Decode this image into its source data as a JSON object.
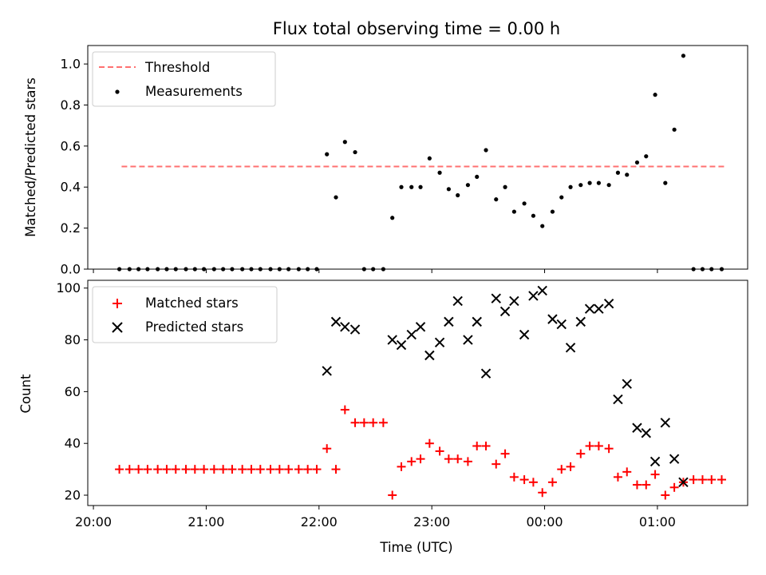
{
  "chart_data": [
    {
      "type": "scatter",
      "title": "Flux total observing time = 0.00 h",
      "ylabel": "Matched/Predicted stars",
      "ylim": [
        0,
        1.09
      ],
      "yticks": [
        "0.0",
        "0.2",
        "0.4",
        "0.6",
        "0.8",
        "1.0"
      ],
      "legend": "top-left",
      "threshold": {
        "name": "Threshold",
        "value": 0.5,
        "x_range": [
          20.25,
          25.6
        ],
        "color": "#ff7070"
      },
      "series": [
        {
          "name": "Measurements",
          "color": "#000000",
          "x": [
            20.23,
            20.32,
            20.4,
            20.48,
            20.57,
            20.65,
            20.73,
            20.82,
            20.9,
            20.98,
            21.07,
            21.15,
            21.23,
            21.32,
            21.4,
            21.48,
            21.57,
            21.65,
            21.73,
            21.82,
            21.9,
            21.98,
            22.07,
            22.15,
            22.23,
            22.32,
            22.4,
            22.48,
            22.57,
            22.65,
            22.73,
            22.82,
            22.9,
            22.98,
            23.07,
            23.15,
            23.23,
            23.32,
            23.4,
            23.48,
            23.57,
            23.65,
            23.73,
            23.82,
            23.9,
            23.98,
            24.07,
            24.15,
            24.23,
            24.32,
            24.4,
            24.48,
            24.57,
            24.65,
            24.73,
            24.82,
            24.9,
            24.98,
            25.07,
            25.15,
            25.23,
            25.32,
            25.4,
            25.48,
            25.57
          ],
          "y": [
            0,
            0,
            0,
            0,
            0,
            0,
            0,
            0,
            0,
            0,
            0,
            0,
            0,
            0,
            0,
            0,
            0,
            0,
            0,
            0,
            0,
            0,
            0.56,
            0.35,
            0.62,
            0.57,
            0,
            0,
            0,
            0.25,
            0.4,
            0.4,
            0.4,
            0.54,
            0.47,
            0.39,
            0.36,
            0.41,
            0.45,
            0.58,
            0.34,
            0.4,
            0.28,
            0.32,
            0.26,
            0.21,
            0.28,
            0.35,
            0.4,
            0.41,
            0.42,
            0.42,
            0.41,
            0.47,
            0.46,
            0.52,
            0.55,
            0.85,
            0.42,
            0.68,
            1.04,
            0,
            0,
            0,
            0
          ]
        }
      ]
    },
    {
      "type": "scatter",
      "xlabel": "Time (UTC)",
      "ylabel": "Count",
      "ylim": [
        16,
        103
      ],
      "yticks": [
        "20",
        "40",
        "60",
        "80",
        "100"
      ],
      "xlim": [
        19.95,
        25.8
      ],
      "xticks": [
        "20:00",
        "21:00",
        "22:00",
        "23:00",
        "00:00",
        "01:00"
      ],
      "legend": "top-left",
      "series": [
        {
          "name": "Matched stars",
          "color": "#ff0000",
          "marker": "plus",
          "x": [
            20.23,
            20.32,
            20.4,
            20.48,
            20.57,
            20.65,
            20.73,
            20.82,
            20.9,
            20.98,
            21.07,
            21.15,
            21.23,
            21.32,
            21.4,
            21.48,
            21.57,
            21.65,
            21.73,
            21.82,
            21.9,
            21.98,
            22.07,
            22.15,
            22.23,
            22.32,
            22.4,
            22.48,
            22.57,
            22.65,
            22.73,
            22.82,
            22.9,
            22.98,
            23.07,
            23.15,
            23.23,
            23.32,
            23.4,
            23.48,
            23.57,
            23.65,
            23.73,
            23.82,
            23.9,
            23.98,
            24.07,
            24.15,
            24.23,
            24.32,
            24.4,
            24.48,
            24.57,
            24.65,
            24.73,
            24.82,
            24.9,
            24.98,
            25.07,
            25.15,
            25.23,
            25.32,
            25.4,
            25.48,
            25.57
          ],
          "y": [
            30,
            30,
            30,
            30,
            30,
            30,
            30,
            30,
            30,
            30,
            30,
            30,
            30,
            30,
            30,
            30,
            30,
            30,
            30,
            30,
            30,
            30,
            38,
            30,
            53,
            48,
            48,
            48,
            48,
            20,
            31,
            33,
            34,
            40,
            37,
            34,
            34,
            33,
            39,
            39,
            32,
            36,
            27,
            26,
            25,
            21,
            25,
            30,
            31,
            36,
            39,
            39,
            38,
            27,
            29,
            24,
            24,
            28,
            20,
            23,
            25,
            26,
            26,
            26,
            26
          ]
        },
        {
          "name": "Predicted stars",
          "color": "#000000",
          "marker": "x",
          "x": [
            22.07,
            22.15,
            22.23,
            22.32,
            22.65,
            22.73,
            22.82,
            22.9,
            22.98,
            23.07,
            23.15,
            23.23,
            23.32,
            23.4,
            23.48,
            23.57,
            23.65,
            23.73,
            23.82,
            23.9,
            23.98,
            24.07,
            24.15,
            24.23,
            24.32,
            24.4,
            24.48,
            24.57,
            24.65,
            24.73,
            24.82,
            24.9,
            24.98,
            25.07,
            25.15,
            25.23
          ],
          "y": [
            68,
            87,
            85,
            84,
            80,
            78,
            82,
            85,
            74,
            79,
            87,
            95,
            80,
            87,
            67,
            96,
            91,
            95,
            82,
            97,
            99,
            88,
            86,
            77,
            87,
            92,
            92,
            94,
            57,
            63,
            46,
            44,
            33,
            48,
            34,
            25
          ]
        }
      ]
    }
  ]
}
